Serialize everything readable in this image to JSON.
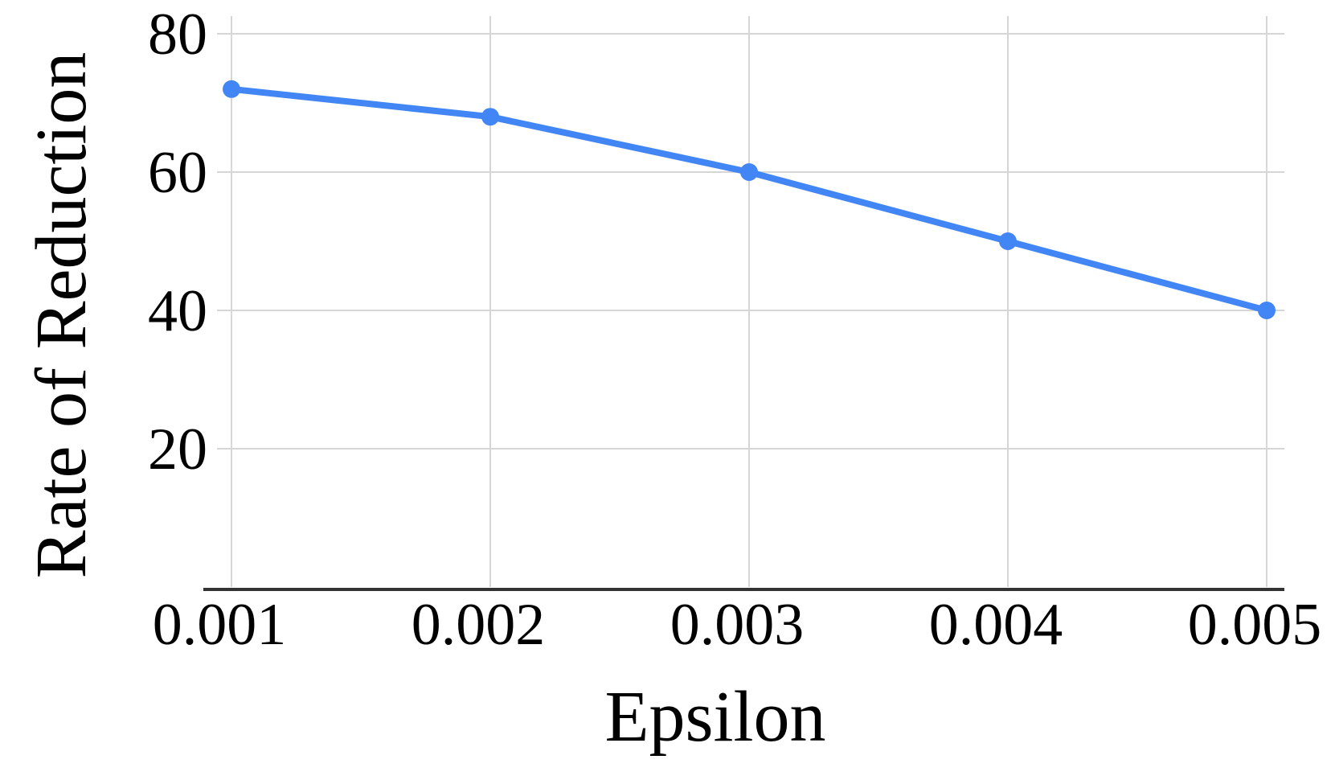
{
  "chart_data": {
    "type": "line",
    "title": "",
    "xlabel": "Epsilon",
    "ylabel": "Rate of Reduction",
    "x": [
      0.001,
      0.002,
      0.003,
      0.004,
      0.005
    ],
    "x_tick_labels": [
      "0.001",
      "0.002",
      "0.003",
      "0.004",
      "0.005"
    ],
    "series": [
      {
        "name": "Rate of Reduction",
        "values": [
          72,
          68,
          60,
          50,
          40
        ]
      }
    ],
    "y_ticks": [
      20,
      40,
      60,
      80
    ],
    "y_tick_labels": [
      "20",
      "40",
      "60",
      "80"
    ],
    "ylim": [
      0,
      82.5
    ],
    "xlim": [
      0.001,
      0.005
    ],
    "grid": true,
    "legend": "none",
    "marker": "circle",
    "colors": {
      "line": "#4285f4",
      "marker": "#4285f4",
      "grid": "#d6d6d6",
      "axis": "#333333",
      "text": "#000000",
      "background": "#ffffff"
    }
  }
}
